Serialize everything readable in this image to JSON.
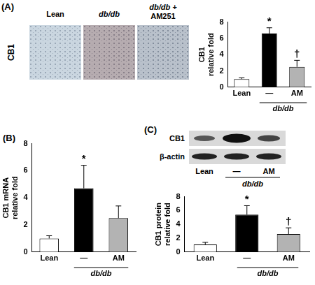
{
  "chart_data": [
    {
      "type": "bar",
      "panel": "(A)",
      "y_label": "CB1\nrelative fold",
      "categories": [
        "Lean",
        "—",
        "AM"
      ],
      "group": {
        "label": "db/db",
        "categories": [
          "—",
          "AM"
        ]
      },
      "values": [
        1.0,
        6.6,
        2.5
      ],
      "errors": [
        0.15,
        0.7,
        0.8
      ],
      "colors": [
        "#ffffff",
        "#000000",
        "#b3b3b3"
      ],
      "annotations": [
        {
          "category": "—",
          "text": "*"
        },
        {
          "category": "AM",
          "text": "†"
        }
      ],
      "ylim": [
        0,
        8
      ],
      "yticks": [
        0,
        2,
        4,
        6,
        8
      ],
      "grid": false
    },
    {
      "type": "bar",
      "panel": "(B)",
      "y_label": "CB1 mRNA\nrelative fold",
      "categories": [
        "Lean",
        "—",
        "AM"
      ],
      "group": {
        "label": "db/db",
        "categories": [
          "—",
          "AM"
        ]
      },
      "values": [
        1.0,
        4.7,
        2.5
      ],
      "errors": [
        0.2,
        1.7,
        0.9
      ],
      "colors": [
        "#ffffff",
        "#000000",
        "#b3b3b3"
      ],
      "annotations": [
        {
          "category": "—",
          "text": "*"
        }
      ],
      "ylim": [
        0,
        8
      ],
      "yticks": [
        0,
        2,
        4,
        6,
        8
      ],
      "grid": false
    },
    {
      "type": "bar",
      "panel": "(C)",
      "y_label": "CB1 protein\nrelative fold",
      "categories": [
        "Lean",
        "—",
        "AM"
      ],
      "group": {
        "label": "db/db",
        "categories": [
          "—",
          "AM"
        ]
      },
      "values": [
        1.1,
        5.4,
        2.6
      ],
      "errors": [
        0.3,
        1.3,
        0.9
      ],
      "colors": [
        "#ffffff",
        "#000000",
        "#b3b3b3"
      ],
      "annotations": [
        {
          "category": "—",
          "text": "*"
        },
        {
          "category": "AM",
          "text": "†"
        }
      ],
      "ylim": [
        0,
        8
      ],
      "yticks": [
        0,
        2,
        4,
        6,
        8
      ],
      "grid": false
    }
  ],
  "micrographs": {
    "row_label": "CB1",
    "column_labels": [
      "Lean",
      "db/db",
      "db/db +\nAM251"
    ]
  },
  "blot": {
    "rows": [
      "CB1",
      "β-actin"
    ]
  }
}
